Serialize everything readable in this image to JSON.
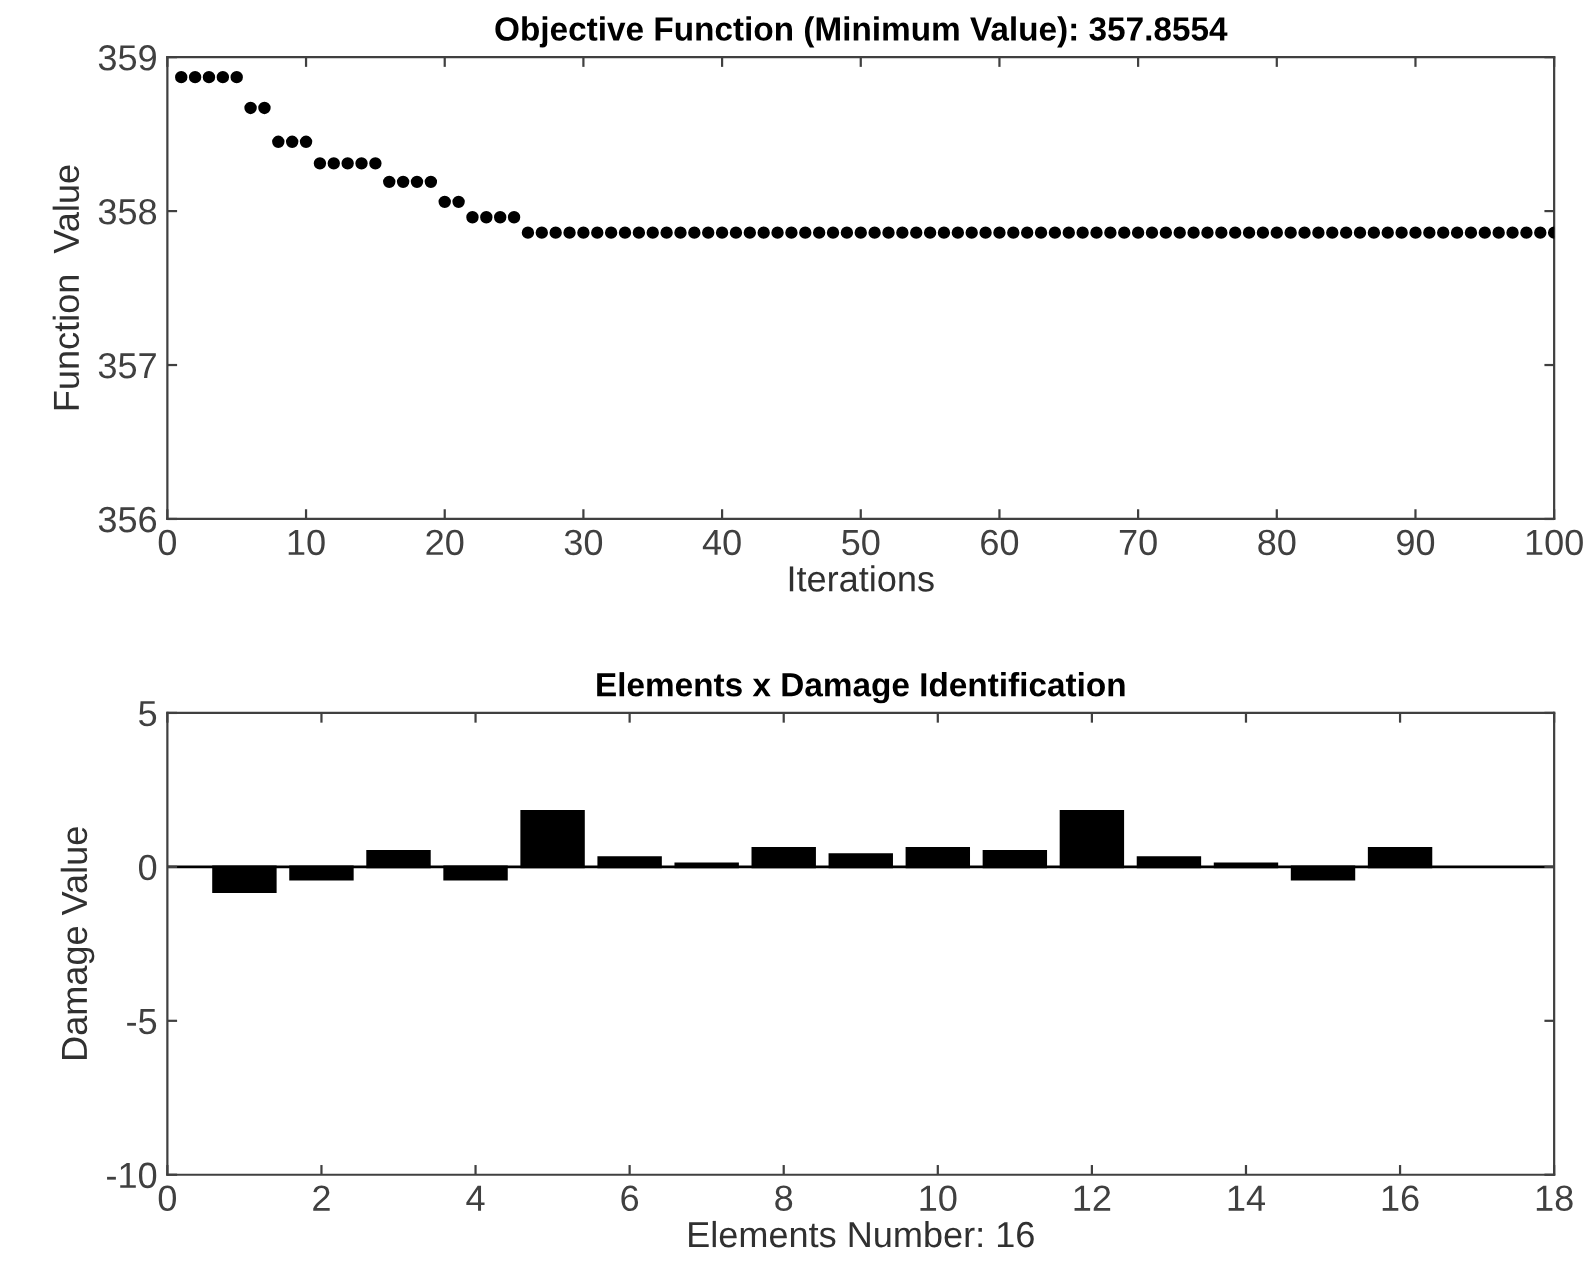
{
  "chart_data": [
    {
      "type": "scatter",
      "title": "Objective Function (Minimum Value): 357.8554",
      "xlabel": "Iterations",
      "ylabel": "Function  Value",
      "marker": "circle",
      "grid": false,
      "series": [
        {
          "color": "#000000",
          "x": [
            1,
            2,
            3,
            4,
            5,
            6,
            7,
            8,
            9,
            10,
            11,
            12,
            13,
            14,
            15,
            16,
            17,
            18,
            19,
            20,
            21,
            22,
            23,
            24,
            25,
            26,
            27,
            28,
            29,
            30,
            31,
            32,
            33,
            34,
            35,
            36,
            37,
            38,
            39,
            40,
            41,
            42,
            43,
            44,
            45,
            46,
            47,
            48,
            49,
            50,
            51,
            52,
            53,
            54,
            55,
            56,
            57,
            58,
            59,
            60,
            61,
            62,
            63,
            64,
            65,
            66,
            67,
            68,
            69,
            70,
            71,
            72,
            73,
            74,
            75,
            76,
            77,
            78,
            79,
            80,
            81,
            82,
            83,
            84,
            85,
            86,
            87,
            88,
            89,
            90,
            91,
            92,
            93,
            94,
            95,
            96,
            97,
            98,
            99,
            100
          ],
          "values": [
            358.87,
            358.87,
            358.87,
            358.87,
            358.87,
            358.67,
            358.67,
            358.45,
            358.45,
            358.45,
            358.31,
            358.31,
            358.31,
            358.31,
            358.31,
            358.19,
            358.19,
            358.19,
            358.19,
            358.06,
            358.06,
            357.96,
            357.96,
            357.96,
            357.96,
            357.86,
            357.86,
            357.86,
            357.86,
            357.86,
            357.86,
            357.86,
            357.86,
            357.86,
            357.86,
            357.86,
            357.86,
            357.86,
            357.86,
            357.86,
            357.86,
            357.86,
            357.86,
            357.86,
            357.86,
            357.86,
            357.86,
            357.86,
            357.86,
            357.86,
            357.86,
            357.86,
            357.86,
            357.86,
            357.86,
            357.86,
            357.86,
            357.86,
            357.86,
            357.86,
            357.86,
            357.86,
            357.86,
            357.86,
            357.86,
            357.86,
            357.86,
            357.86,
            357.86,
            357.86,
            357.86,
            357.86,
            357.86,
            357.86,
            357.86,
            357.86,
            357.86,
            357.86,
            357.86,
            357.86,
            357.86,
            357.86,
            357.86,
            357.86,
            357.86,
            357.86,
            357.86,
            357.86,
            357.86,
            357.86,
            357.86,
            357.86,
            357.86,
            357.86,
            357.86,
            357.86,
            357.86,
            357.86,
            357.86,
            357.86
          ]
        }
      ],
      "xlim": [
        0,
        100
      ],
      "xticks": [
        0,
        10,
        20,
        30,
        40,
        50,
        60,
        70,
        80,
        90,
        100
      ],
      "ylim": [
        356,
        359
      ],
      "yticks": [
        356,
        357,
        358,
        359
      ]
    },
    {
      "type": "bar",
      "title": "Elements x Damage Identification",
      "xlabel": "Elements Number: 16",
      "ylabel": "Damage Value",
      "grid": false,
      "x": [
        1,
        2,
        3,
        4,
        5,
        6,
        7,
        8,
        9,
        10,
        11,
        12,
        13,
        14,
        15,
        16
      ],
      "series": [
        {
          "color": "#000000",
          "values": [
            -0.8,
            -0.4,
            0.5,
            -0.4,
            1.8,
            0.3,
            0.1,
            0.6,
            0.4,
            0.6,
            0.5,
            1.8,
            0.3,
            0.1,
            -0.4,
            0.6
          ]
        }
      ],
      "ref_lines": [
        {
          "axis": "y",
          "value": 0,
          "color": "#000000"
        }
      ],
      "xlim": [
        0,
        18
      ],
      "xticks": [
        0,
        2,
        4,
        6,
        8,
        10,
        12,
        14,
        16,
        18
      ],
      "ylim": [
        -10,
        5
      ],
      "yticks": [
        -10,
        -5,
        0,
        5
      ]
    }
  ]
}
